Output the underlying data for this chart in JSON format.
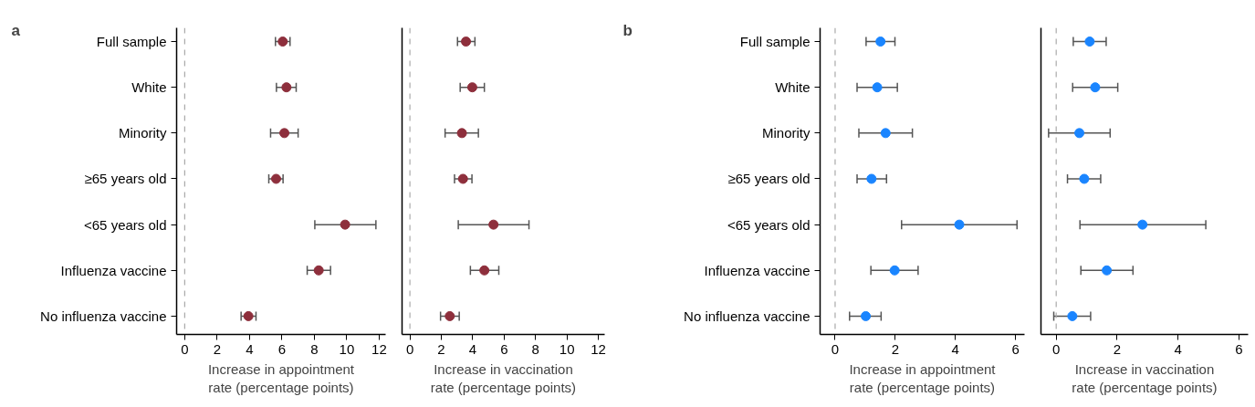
{
  "chart_data": [
    {
      "type": "scatter",
      "orientation": "horizontal",
      "annotations": [
        "a"
      ],
      "categories": [
        "Full sample",
        "White",
        "Minority",
        "≥65 years old",
        "<65 years old",
        "Influenza vaccine",
        "No influenza vaccine"
      ],
      "xlabel": "Increase in appointment rate (percentage points)",
      "xlim": [
        -0.5,
        12.4
      ],
      "xticks": [
        0,
        2,
        4,
        6,
        8,
        10,
        12
      ],
      "marker": "circle",
      "ref_lines": [
        {
          "axis": "x",
          "value": 0,
          "color": "#aaaaaa",
          "line_style": "dashed"
        }
      ],
      "series": [
        {
          "color": "#8e2f3c",
          "values": [
            6.05,
            6.28,
            6.15,
            5.64,
            9.9,
            8.27,
            3.93
          ],
          "errors": [
            [
              5.6,
              6.5
            ],
            [
              5.66,
              6.88
            ],
            [
              5.3,
              7.0
            ],
            [
              5.19,
              6.07
            ],
            [
              8.03,
              11.8
            ],
            [
              7.56,
              9.0
            ],
            [
              3.48,
              4.4
            ]
          ]
        }
      ]
    },
    {
      "type": "scatter",
      "orientation": "horizontal",
      "tick_labels": "x",
      "categories": [
        "Full sample",
        "White",
        "Minority",
        "≥65 years old",
        "<65 years old",
        "Influenza vaccine",
        "No influenza vaccine"
      ],
      "xlabel": "Increase in vaccination rate (percentage points)",
      "xlim": [
        -0.5,
        12.4
      ],
      "xticks": [
        0,
        2,
        4,
        6,
        8,
        10,
        12
      ],
      "marker": "circle",
      "ref_lines": [
        {
          "axis": "x",
          "value": 0,
          "color": "#aaaaaa",
          "line_style": "dashed"
        }
      ],
      "series": [
        {
          "color": "#8e2f3c",
          "values": [
            3.57,
            3.97,
            3.31,
            3.38,
            5.32,
            4.74,
            2.54
          ],
          "errors": [
            [
              3.03,
              4.14
            ],
            [
              3.2,
              4.74
            ],
            [
              2.24,
              4.36
            ],
            [
              2.84,
              3.95
            ],
            [
              3.08,
              7.58
            ],
            [
              3.85,
              5.66
            ],
            [
              1.95,
              3.14
            ]
          ]
        }
      ]
    },
    {
      "type": "scatter",
      "orientation": "horizontal",
      "annotations": [
        "b"
      ],
      "categories": [
        "Full sample",
        "White",
        "Minority",
        "≥65 years old",
        "<65 years old",
        "Influenza vaccine",
        "No influenza vaccine"
      ],
      "xlabel": "Increase in appointment rate (percentage points)",
      "xlim": [
        -0.5,
        6.3
      ],
      "xticks": [
        0,
        2,
        4,
        6
      ],
      "marker": "circle",
      "ref_lines": [
        {
          "axis": "x",
          "value": 0,
          "color": "#aaaaaa",
          "line_style": "dashed"
        }
      ],
      "series": [
        {
          "color": "#1a85ff",
          "values": [
            1.51,
            1.4,
            1.68,
            1.21,
            4.13,
            1.98,
            1.02
          ],
          "errors": [
            [
              1.03,
              1.99
            ],
            [
              0.73,
              2.07
            ],
            [
              0.79,
              2.57
            ],
            [
              0.73,
              1.71
            ],
            [
              2.21,
              6.05
            ],
            [
              1.19,
              2.76
            ],
            [
              0.48,
              1.53
            ]
          ]
        }
      ]
    },
    {
      "type": "scatter",
      "orientation": "horizontal",
      "tick_labels": "x",
      "categories": [
        "Full sample",
        "White",
        "Minority",
        "≥65 years old",
        "<65 years old",
        "Influenza vaccine",
        "No influenza vaccine"
      ],
      "xlabel": "Increase in vaccination rate (percentage points)",
      "xlim": [
        -0.5,
        6.3
      ],
      "xticks": [
        0,
        2,
        4,
        6
      ],
      "marker": "circle",
      "ref_lines": [
        {
          "axis": "x",
          "value": 0,
          "color": "#aaaaaa",
          "line_style": "dashed"
        }
      ],
      "series": [
        {
          "color": "#1a85ff",
          "values": [
            1.1,
            1.28,
            0.76,
            0.92,
            2.83,
            1.66,
            0.53
          ],
          "errors": [
            [
              0.56,
              1.64
            ],
            [
              0.54,
              2.02
            ],
            [
              -0.25,
              1.77
            ],
            [
              0.37,
              1.46
            ],
            [
              0.78,
              4.91
            ],
            [
              0.81,
              2.52
            ],
            [
              -0.08,
              1.13
            ]
          ]
        }
      ]
    }
  ]
}
